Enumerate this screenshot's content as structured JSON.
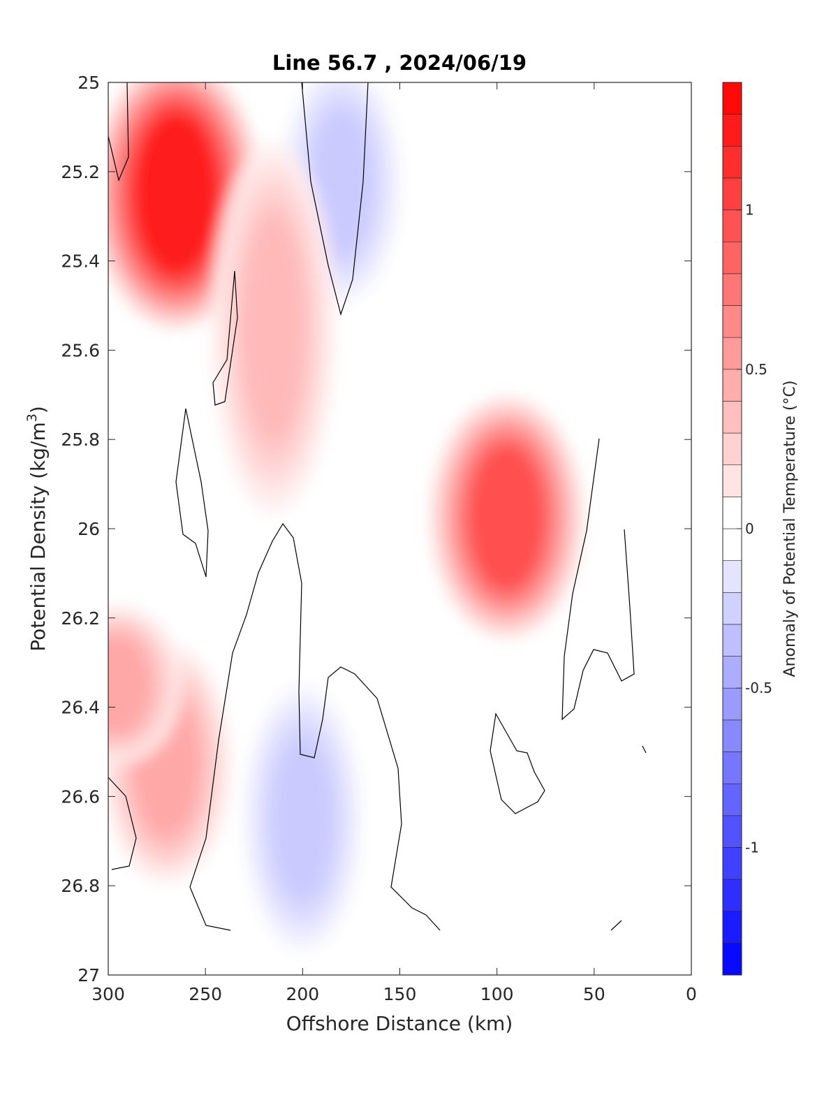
{
  "chart_data": {
    "type": "heatmap",
    "subtype": "filled-contour",
    "title": "Line 56.7 , 2024/06/19",
    "xlabel": "Offshore Distance (km)",
    "ylabel": "Potential Density (kg/m",
    "ylabel_sup": "3",
    "ylabel_end": ")",
    "colorbar_label": "Anomaly of Potential Temperature (°C)",
    "x_ticks": [
      "300",
      "250",
      "200",
      "150",
      "100",
      "50",
      "0"
    ],
    "y_ticks": [
      "25",
      "25.2",
      "25.4",
      "25.6",
      "25.8",
      "26",
      "26.2",
      "26.4",
      "26.6",
      "26.8",
      "27"
    ],
    "colorbar_ticks": [
      "1",
      "0.5",
      "0",
      "-0.5",
      "-1"
    ],
    "xlim": [
      300,
      0
    ],
    "ylim": [
      25,
      27
    ],
    "x_reversed": true,
    "y_reversed": true,
    "clim": [
      -1.4,
      1.4
    ],
    "contour_step": 0.1,
    "colormap": "blue-white-red",
    "colors": {
      "max": "#ff0000",
      "min": "#0000ff",
      "zero": "#ffffff"
    },
    "features": [
      {
        "name": "warm core near surface",
        "x": 265,
        "y_range": [
          25.0,
          25.5
        ],
        "peak": 1.3
      },
      {
        "name": "cool core",
        "x": 180,
        "y_range": [
          25.0,
          25.45
        ],
        "peak": -0.3
      },
      {
        "name": "warm band",
        "x": 215,
        "y_range": [
          25.2,
          25.9
        ],
        "peak": 0.4
      },
      {
        "name": "warm nearshore slope",
        "x": 95,
        "y_range": [
          25.75,
          26.2
        ],
        "peak": 1.0
      },
      {
        "name": "warm deep",
        "x": 270,
        "y_range": [
          26.3,
          26.75
        ],
        "peak": 0.5
      },
      {
        "name": "cool deep",
        "x": 200,
        "y_range": [
          26.4,
          26.9
        ],
        "peak": -0.3
      },
      {
        "name": "warm offshore deep",
        "x": 295,
        "y_range": [
          26.2,
          26.5
        ],
        "peak": 0.5
      }
    ]
  }
}
